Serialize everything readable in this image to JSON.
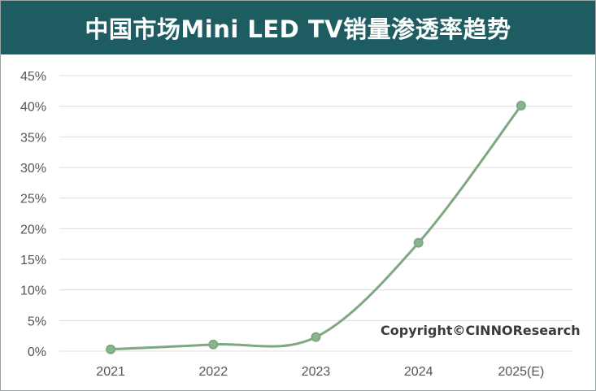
{
  "colors": {
    "title_bg": "#1d5d61",
    "line": "#7fa882",
    "point": "#8ab48c",
    "grid": "#dcdcdc"
  },
  "chart_data": {
    "type": "line",
    "title": "中国市场Mini LED TV销量渗透率趋势",
    "categories": [
      "2021",
      "2022",
      "2023",
      "2024",
      "2025(E)"
    ],
    "series": [
      {
        "values": [
          0.3,
          1.1,
          2.3,
          17.7,
          40.1
        ]
      }
    ],
    "ylim": [
      0,
      45
    ],
    "yticks": [
      0,
      5,
      10,
      15,
      20,
      25,
      30,
      35,
      40,
      45
    ],
    "ytick_labels": [
      "0%",
      "5%",
      "10%",
      "15%",
      "20%",
      "25%",
      "30%",
      "35%",
      "40%",
      "45%"
    ],
    "grid": true,
    "smooth": true,
    "xlabel": "",
    "ylabel": ""
  },
  "watermark": "Copyright©CINNOResearch"
}
